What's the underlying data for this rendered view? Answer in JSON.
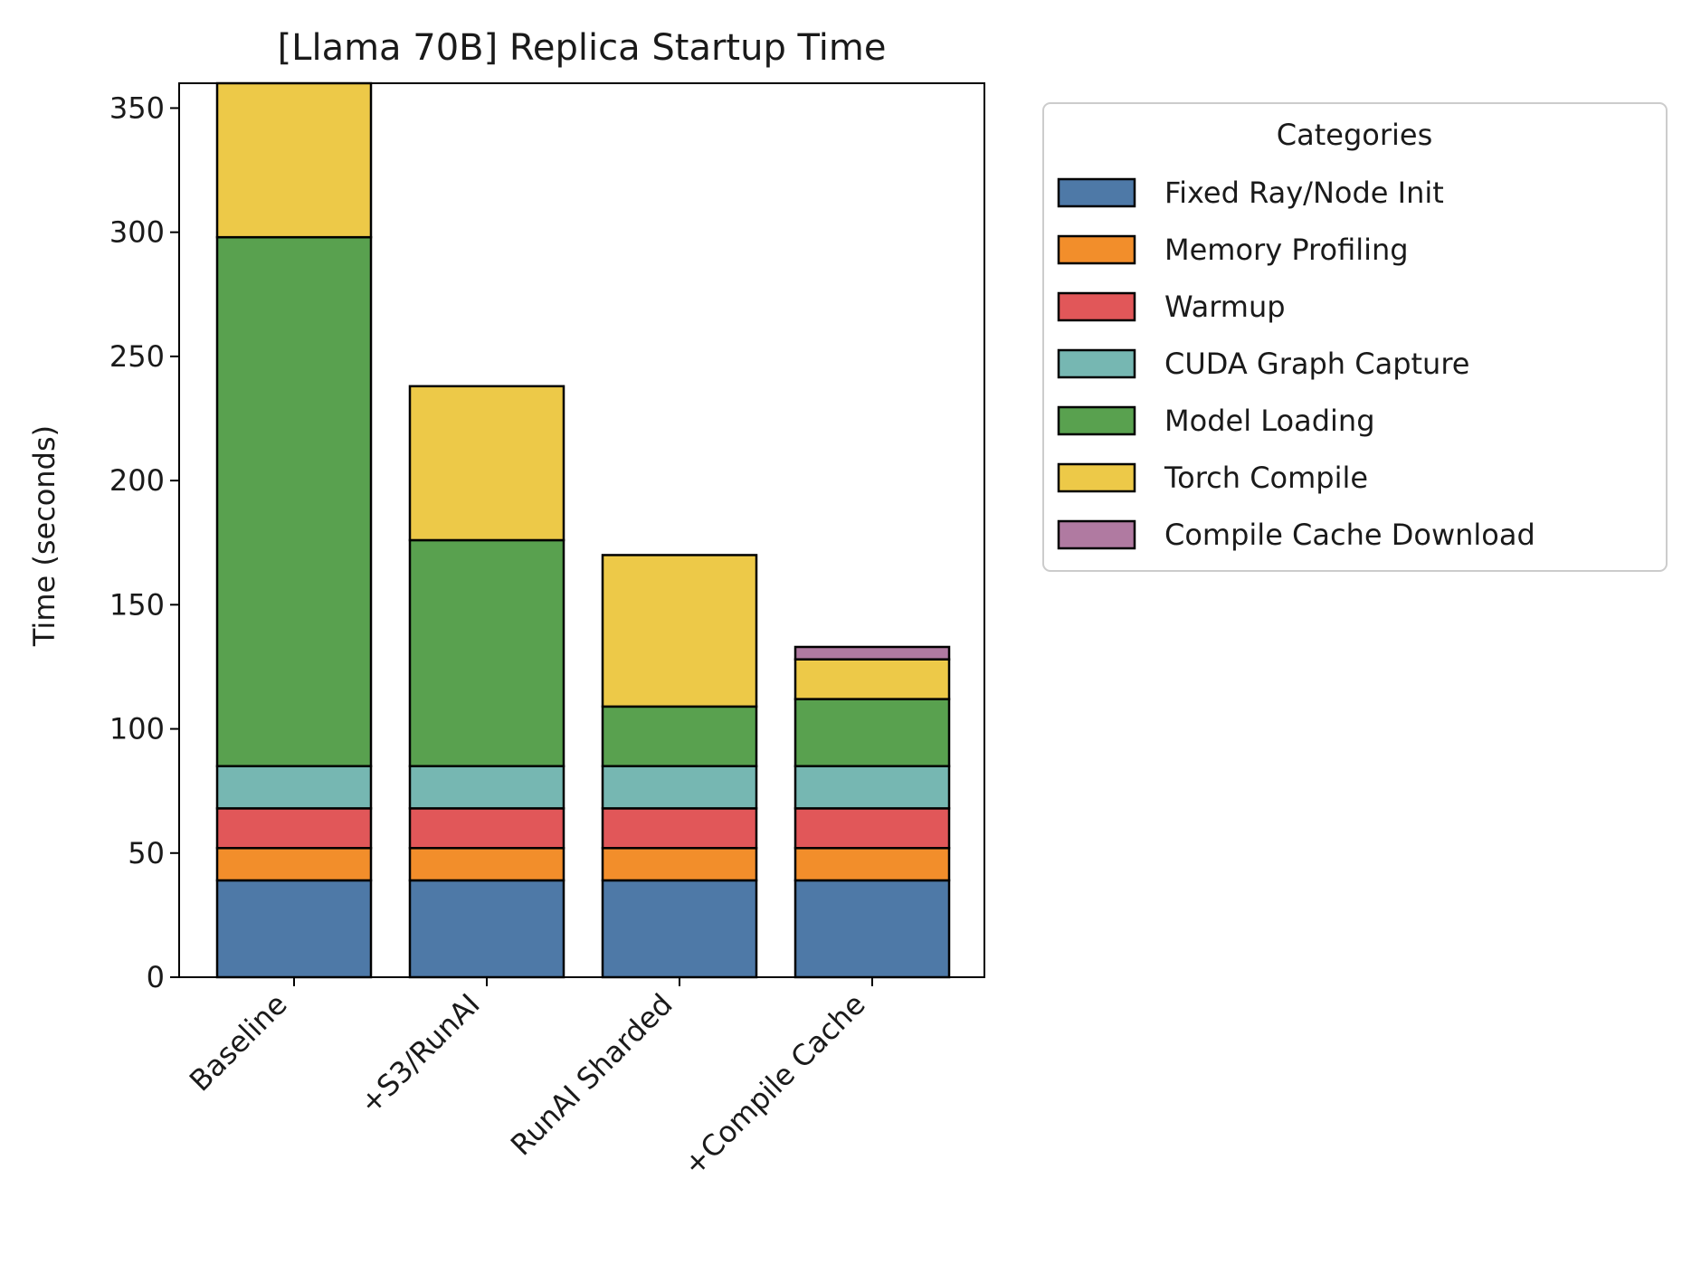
{
  "chart_data": {
    "type": "bar",
    "stacked": true,
    "title": "[Llama 70B] Replica Startup Time",
    "xlabel": "",
    "ylabel": "Time (seconds)",
    "ylim": [
      0,
      360
    ],
    "yticks": [
      0,
      50,
      100,
      150,
      200,
      250,
      300,
      350
    ],
    "categories": [
      "Baseline",
      "+S3/RunAI",
      "RunAI Sharded",
      "+Compile Cache"
    ],
    "grid": false,
    "legend": {
      "title": "Categories",
      "placement": "outside-top-right"
    },
    "series": [
      {
        "name": "Fixed Ray/Node Init",
        "color": "#4e79a7",
        "values": [
          39,
          39,
          39,
          39
        ]
      },
      {
        "name": "Memory Profiling",
        "color": "#f28e2b",
        "values": [
          13,
          13,
          13,
          13
        ]
      },
      {
        "name": "Warmup",
        "color": "#e15759",
        "values": [
          16,
          16,
          16,
          16
        ]
      },
      {
        "name": "CUDA Graph Capture",
        "color": "#76b7b2",
        "values": [
          17,
          17,
          17,
          17
        ]
      },
      {
        "name": "Model Loading",
        "color": "#59a14f",
        "values": [
          213,
          91,
          24,
          27
        ]
      },
      {
        "name": "Torch Compile",
        "color": "#edc948",
        "values": [
          62,
          62,
          61,
          16
        ]
      },
      {
        "name": "Compile Cache Download",
        "color": "#b07aa1",
        "values": [
          0,
          0,
          0,
          5
        ]
      }
    ]
  }
}
